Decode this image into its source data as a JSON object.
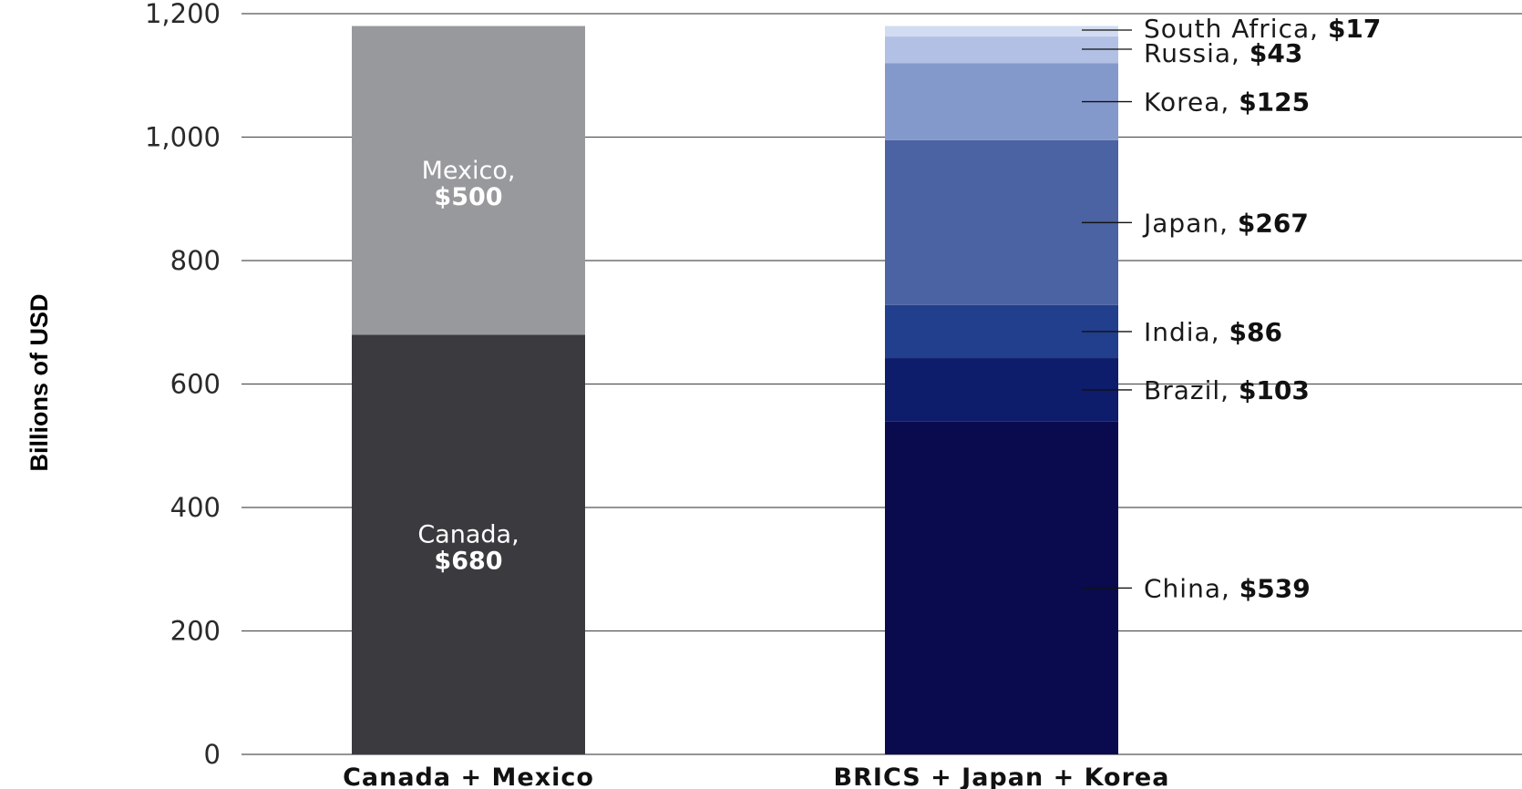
{
  "chart_data": {
    "type": "bar",
    "stacked": true,
    "ylabel": "Billions of USD",
    "ylim": [
      0,
      1200
    ],
    "yticks": [
      "0",
      "200",
      "400",
      "600",
      "800",
      "1,000",
      "1,200"
    ],
    "grid": true,
    "categories": [
      "Canada + Mexico",
      "BRICS + Japan + Korea"
    ],
    "stacks": [
      {
        "category": "Canada + Mexico",
        "segments": [
          {
            "name": "Canada,",
            "value": 680,
            "label_value": "$680",
            "color": "#3b3b3f",
            "label_style": "inside"
          },
          {
            "name": "Mexico,",
            "value": 500,
            "label_value": "$500",
            "color": "#98999c",
            "label_style": "inside"
          }
        ]
      },
      {
        "category": "BRICS + Japan + Korea",
        "segments": [
          {
            "name": "China,",
            "value": 539,
            "label_value": "$539",
            "color": "#0a0b4e",
            "label_style": "callout"
          },
          {
            "name": "Brazil,",
            "value": 103,
            "label_value": "$103",
            "color": "#0d1c6b",
            "label_style": "callout"
          },
          {
            "name": "India,",
            "value": 86,
            "label_value": "$86",
            "color": "#213f8c",
            "label_style": "callout"
          },
          {
            "name": "Japan,",
            "value": 267,
            "label_value": "$267",
            "color": "#4b62a3",
            "label_style": "callout"
          },
          {
            "name": "Korea,",
            "value": 125,
            "label_value": "$125",
            "color": "#8499cb",
            "label_style": "callout"
          },
          {
            "name": "Russia,",
            "value": 43,
            "label_value": "$43",
            "color": "#b1c0e4",
            "label_style": "callout"
          },
          {
            "name": "South Africa,",
            "value": 17,
            "label_value": "$17",
            "color": "#d2dcf1",
            "label_style": "callout"
          }
        ]
      }
    ]
  }
}
